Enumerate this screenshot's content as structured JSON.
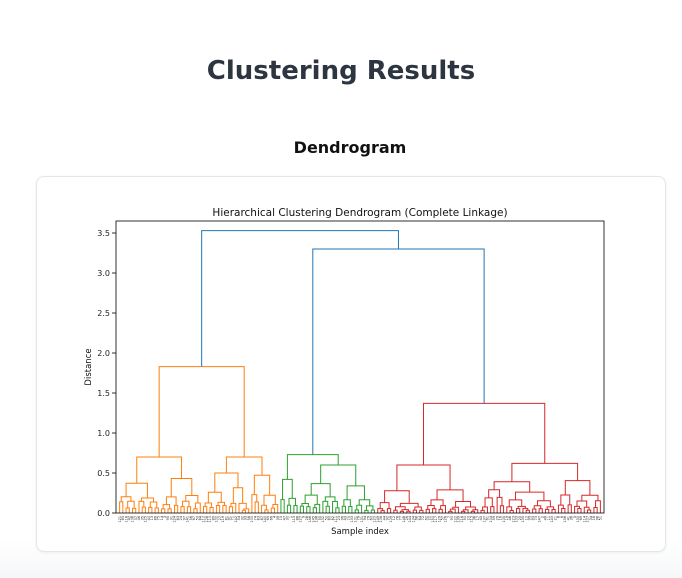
{
  "page": {
    "title": "Clustering Results",
    "section_title": "Dendrogram"
  },
  "chart_data": {
    "type": "dendrogram",
    "title": "Hierarchical Clustering Dendrogram (Complete Linkage)",
    "xlabel": "Sample index",
    "ylabel": "Distance",
    "ylim": [
      0,
      3.65
    ],
    "yticks": [
      0.0,
      0.5,
      1.0,
      1.5,
      2.0,
      2.5,
      3.0,
      3.5
    ],
    "ytick_labels": [
      "0.0",
      "0.5",
      "1.0",
      "1.5",
      "2.0",
      "2.5",
      "3.0",
      "3.5"
    ],
    "grid": false,
    "leaf_labels": [
      "121",
      "85",
      "118",
      "42",
      "108",
      "37",
      "46",
      "35",
      "125",
      "40",
      "13",
      "86",
      "75",
      "14",
      "3",
      "95",
      "31",
      "124",
      "63",
      "24",
      "97",
      "141",
      "56",
      "67",
      "53",
      "84",
      "112",
      "128",
      "110",
      "89",
      "102",
      "27",
      "119",
      "81",
      "91",
      "71",
      "142",
      "54",
      "32",
      "33",
      "58",
      "100",
      "74",
      "83",
      "87",
      "140",
      "65",
      "66",
      "4",
      "39",
      "15",
      "47",
      "30",
      "1",
      "113",
      "88",
      "127",
      "9",
      "28",
      "146",
      "145",
      "138",
      "55",
      "132",
      "52",
      "80",
      "82",
      "111",
      "23",
      "96",
      "43",
      "70",
      "133",
      "101",
      "76",
      "131",
      "94",
      "79",
      "60",
      "120",
      "149",
      "106",
      "44",
      "92",
      "109",
      "12",
      "78",
      "77",
      "148",
      "26",
      "144",
      "134",
      "68",
      "64",
      "72",
      "62",
      "22",
      "150",
      "117",
      "129",
      "57",
      "126",
      "7",
      "90",
      "122",
      "139",
      "116",
      "50",
      "20",
      "115",
      "38",
      "17",
      "45",
      "137",
      "61",
      "104",
      "59",
      "29",
      "16",
      "105",
      "19",
      "48",
      "123",
      "103",
      "25",
      "135",
      "10",
      "99",
      "93",
      "73",
      "147",
      "2",
      "49",
      "11",
      "143",
      "21",
      "8",
      "6",
      "136",
      "41",
      "36",
      "5",
      "130",
      "69",
      "114",
      "107",
      "34",
      "18",
      "98",
      "51"
    ],
    "colors": {
      "cluster_1": "#ff7f0e",
      "cluster_2": "#2ca02c",
      "cluster_3": "#d62728",
      "above_threshold": "#1f77b4"
    },
    "merges_top": [
      {
        "height": 3.53,
        "joins": [
          "cluster_1",
          "merge_2_3"
        ]
      },
      {
        "height": 3.3,
        "joins": [
          "cluster_2",
          "cluster_3"
        ]
      },
      {
        "height": 1.83,
        "cluster": "cluster_1"
      },
      {
        "height": 1.37,
        "cluster": "cluster_3"
      },
      {
        "height": 0.73,
        "cluster": "cluster_2"
      }
    ]
  }
}
